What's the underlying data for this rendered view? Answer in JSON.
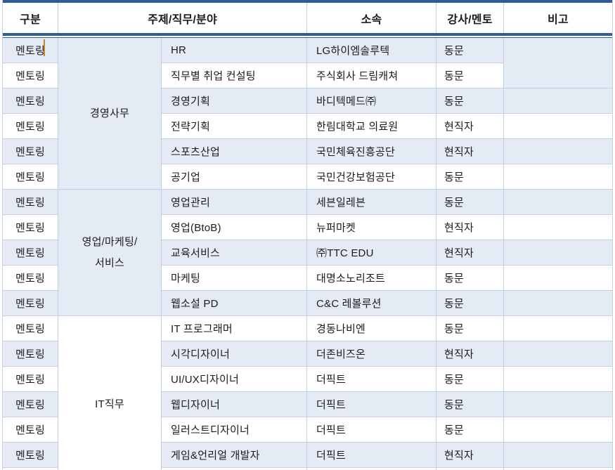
{
  "colors": {
    "accent_navy": "#2e5c93",
    "row_band_blue": "#e4ebf5",
    "cell_border": "#bfd0e6",
    "text": "#1b1b1b",
    "caret_orange": "#c7872b"
  },
  "table": {
    "columns": [
      "구분",
      "주제/직무/분야",
      "소속",
      "강사/멘토",
      "비고"
    ],
    "groups": [
      {
        "label": "경영사무",
        "rows": 6,
        "shaded": true
      },
      {
        "label": "영업/마케팅/서비스",
        "rows": 5,
        "shaded": true
      },
      {
        "label": "IT직무",
        "rows": 6,
        "shaded": false
      }
    ],
    "rows": [
      {
        "category": "멘토링",
        "topic": "HR",
        "org": "LG하이엠솔루텍",
        "mentor": "동문",
        "note": ""
      },
      {
        "category": "멘토링",
        "topic": "직무별 취업 컨설팅",
        "org": "주식회사 드림캐쳐",
        "mentor": "동문",
        "note": ""
      },
      {
        "category": "멘토링",
        "topic": "경영기획",
        "org": "바디텍메드㈜",
        "mentor": "동문",
        "note": ""
      },
      {
        "category": "멘토링",
        "topic": "전략기획",
        "org": "한림대학교 의료원",
        "mentor": "현직자",
        "note": ""
      },
      {
        "category": "멘토링",
        "topic": "스포츠산업",
        "org": "국민체육진흥공단",
        "mentor": "현직자",
        "note": ""
      },
      {
        "category": "멘토링",
        "topic": "공기업",
        "org": "국민건강보험공단",
        "mentor": "동문",
        "note": ""
      },
      {
        "category": "멘토링",
        "topic": "영업관리",
        "org": "세븐일레븐",
        "mentor": "동문",
        "note": ""
      },
      {
        "category": "멘토링",
        "topic": "영업(BtoB)",
        "org": "뉴퍼마켓",
        "mentor": "현직자",
        "note": ""
      },
      {
        "category": "멘토링",
        "topic": "교육서비스",
        "org": "㈜TTC EDU",
        "mentor": "현직자",
        "note": ""
      },
      {
        "category": "멘토링",
        "topic": "마케팅",
        "org": "대명소노리조트",
        "mentor": "동문",
        "note": ""
      },
      {
        "category": "멘토링",
        "topic": "웹소설 PD",
        "org": "C&C 레볼루션",
        "mentor": "동문",
        "note": ""
      },
      {
        "category": "멘토링",
        "topic": "IT 프로그래머",
        "org": "경동나비엔",
        "mentor": "동문",
        "note": ""
      },
      {
        "category": "멘토링",
        "topic": "시각디자이너",
        "org": "더존비즈온",
        "mentor": "현직자",
        "note": ""
      },
      {
        "category": "멘토링",
        "topic": "UI/UX디자이너",
        "org": "더픽트",
        "mentor": "동문",
        "note": ""
      },
      {
        "category": "멘토링",
        "topic": "웹디자이너",
        "org": "더픽트",
        "mentor": "동문",
        "note": ""
      },
      {
        "category": "멘토링",
        "topic": "일러스트디자이너",
        "org": "더픽트",
        "mentor": "동문",
        "note": ""
      },
      {
        "category": "멘토링",
        "topic": "게임&언리얼 개발자",
        "org": "더픽트",
        "mentor": "현직자",
        "note": ""
      }
    ],
    "note_cell_merged_over_first_two_rows": true
  }
}
